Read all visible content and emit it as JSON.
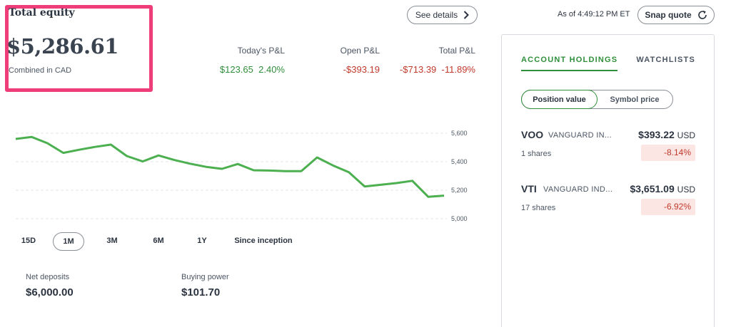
{
  "equity": {
    "title": "Total equity",
    "value": "$5,286.61",
    "subtitle": "Combined in CAD"
  },
  "header": {
    "see_details": "See details",
    "as_of": "As of 4:49:12 PM ET",
    "snap_quote": "Snap quote"
  },
  "pnl": {
    "today": {
      "label": "Today's P&L",
      "amount": "$123.65",
      "percent": "2.40%"
    },
    "open": {
      "label": "Open P&L",
      "amount": "-$393.19"
    },
    "total": {
      "label": "Total P&L",
      "amount": "-$713.39",
      "percent": "-11.89%"
    }
  },
  "colors": {
    "accent_green": "#2f8f3a",
    "loss_red": "#c0392b",
    "highlight_pink": "#ee3d78"
  },
  "chart_data": {
    "type": "line",
    "ticks": [
      "5,600",
      "5,400",
      "5,200",
      "5,000"
    ],
    "tick_values": [
      5600,
      5400,
      5200,
      5000
    ],
    "ylim": [
      5000,
      5600
    ],
    "values": [
      5560,
      5574,
      5530,
      5462,
      5484,
      5504,
      5520,
      5440,
      5402,
      5444,
      5412,
      5386,
      5364,
      5350,
      5384,
      5340,
      5338,
      5334,
      5334,
      5430,
      5374,
      5326,
      5226,
      5238,
      5250,
      5266,
      5154,
      5162
    ],
    "grid": true,
    "line_color": "#4caf50"
  },
  "ranges": [
    {
      "label": "15D",
      "active": false
    },
    {
      "label": "1M",
      "active": true
    },
    {
      "label": "3M",
      "active": false
    },
    {
      "label": "6M",
      "active": false
    },
    {
      "label": "1Y",
      "active": false
    },
    {
      "label": "Since inception",
      "active": false
    }
  ],
  "stats": {
    "net_deposits": {
      "label": "Net deposits",
      "value": "$6,000.00"
    },
    "buying_power": {
      "label": "Buying power",
      "value": "$101.70"
    }
  },
  "panel": {
    "tabs": [
      "ACCOUNT HOLDINGS",
      "WATCHLISTS"
    ],
    "toggle": [
      "Position value",
      "Symbol price"
    ],
    "holdings": [
      {
        "symbol": "VOO",
        "name": "VANGUARD IN...",
        "price": "$393.22",
        "currency": "USD",
        "shares": "1 shares",
        "change": "-8.14%"
      },
      {
        "symbol": "VTI",
        "name": "VANGUARD IND...",
        "price": "$3,651.09",
        "currency": "USD",
        "shares": "17 shares",
        "change": "-6.92%"
      }
    ]
  }
}
